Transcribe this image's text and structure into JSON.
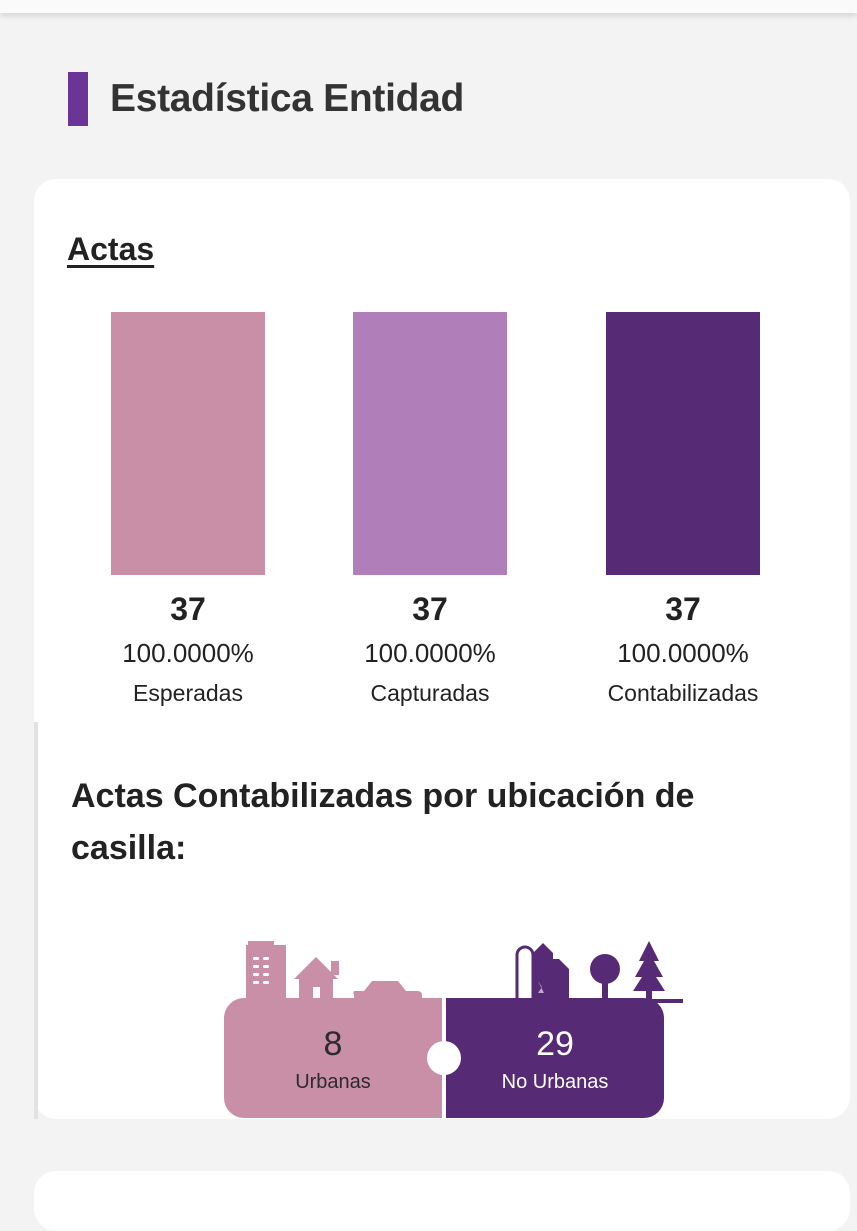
{
  "page": {
    "section_title": "Estadística Entidad",
    "accent_color": "#6a3596"
  },
  "actas": {
    "title": "Actas",
    "bars": [
      {
        "count": "37",
        "percent": "100.0000%",
        "label": "Esperadas",
        "color": "#c98fa6",
        "fill_fraction": 1.0
      },
      {
        "count": "37",
        "percent": "100.0000%",
        "label": "Capturadas",
        "color": "#b07fb9",
        "fill_fraction": 1.0
      },
      {
        "count": "37",
        "percent": "100.0000%",
        "label": "Contabilizadas",
        "color": "#562a74",
        "fill_fraction": 1.0
      }
    ]
  },
  "ubicacion": {
    "title": "Actas Contabilizadas por ubicación de casilla:",
    "urbanas": {
      "count": "8",
      "label": "Urbanas",
      "color": "#c98fa6",
      "icons": [
        "building-icon",
        "house-icon",
        "car-icon"
      ]
    },
    "no_urbanas": {
      "count": "29",
      "label": "No Urbanas",
      "color": "#562a74",
      "icons": [
        "barn-silo-icon",
        "round-tree-icon",
        "pine-tree-icon"
      ]
    }
  }
}
